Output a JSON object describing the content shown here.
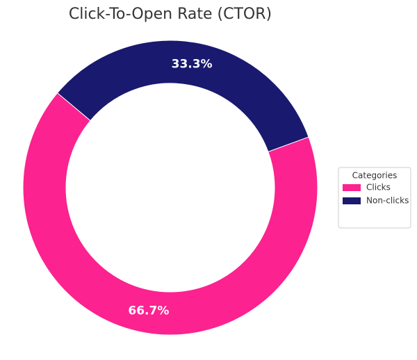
{
  "chart_data": {
    "type": "donut",
    "title": "Click-To-Open Rate (CTOR)",
    "categories": [
      "Clicks",
      "Non-clicks"
    ],
    "values": [
      66.7,
      33.3
    ],
    "value_labels": [
      "66.7%",
      "33.3%"
    ],
    "colors": [
      "#fc2290",
      "#191970"
    ],
    "legend_title": "Categories",
    "legend": "right"
  }
}
